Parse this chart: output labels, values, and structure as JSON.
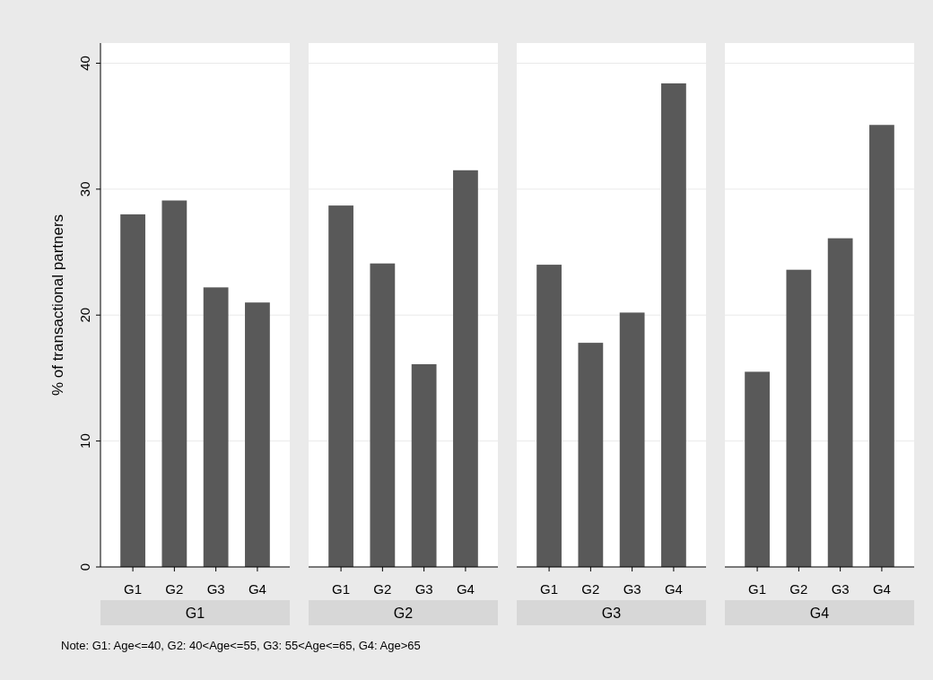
{
  "chart_data": [
    {
      "type": "bar",
      "title": "G1",
      "ylabel": "% of transactional partners",
      "categories": [
        "G1",
        "G2",
        "G3",
        "G4"
      ],
      "values": [
        28.0,
        29.1,
        22.2,
        21.0
      ],
      "color": "#595959",
      "ylim": [
        0,
        41.6
      ],
      "yticks": [
        0,
        10,
        20,
        30,
        40
      ],
      "grid": "y",
      "annotations": [
        "Note:  G1: Age<=40,  G2: 40<Age<=55,  G3: 55<Age<=65,  G4: Age>65"
      ]
    },
    {
      "type": "bar",
      "title": "G2",
      "categories": [
        "G1",
        "G2",
        "G3",
        "G4"
      ],
      "values": [
        28.7,
        24.1,
        16.1,
        31.5
      ],
      "color": "#595959",
      "ylim": [
        0,
        41.6
      ],
      "yticks": [
        0,
        10,
        20,
        30,
        40
      ],
      "grid": "y",
      "tick_labels": "x"
    },
    {
      "type": "bar",
      "title": "G3",
      "categories": [
        "G1",
        "G2",
        "G3",
        "G4"
      ],
      "values": [
        24.0,
        17.8,
        20.2,
        38.4
      ],
      "color": "#595959",
      "ylim": [
        0,
        41.6
      ],
      "yticks": [
        0,
        10,
        20,
        30,
        40
      ],
      "grid": "y",
      "tick_labels": "x"
    },
    {
      "type": "bar",
      "title": "G4",
      "categories": [
        "G1",
        "G2",
        "G3",
        "G4"
      ],
      "values": [
        15.5,
        23.6,
        26.1,
        35.1
      ],
      "color": "#595959",
      "ylim": [
        0,
        41.6
      ],
      "yticks": [
        0,
        10,
        20,
        30,
        40
      ],
      "grid": "y",
      "tick_labels": "x"
    }
  ]
}
